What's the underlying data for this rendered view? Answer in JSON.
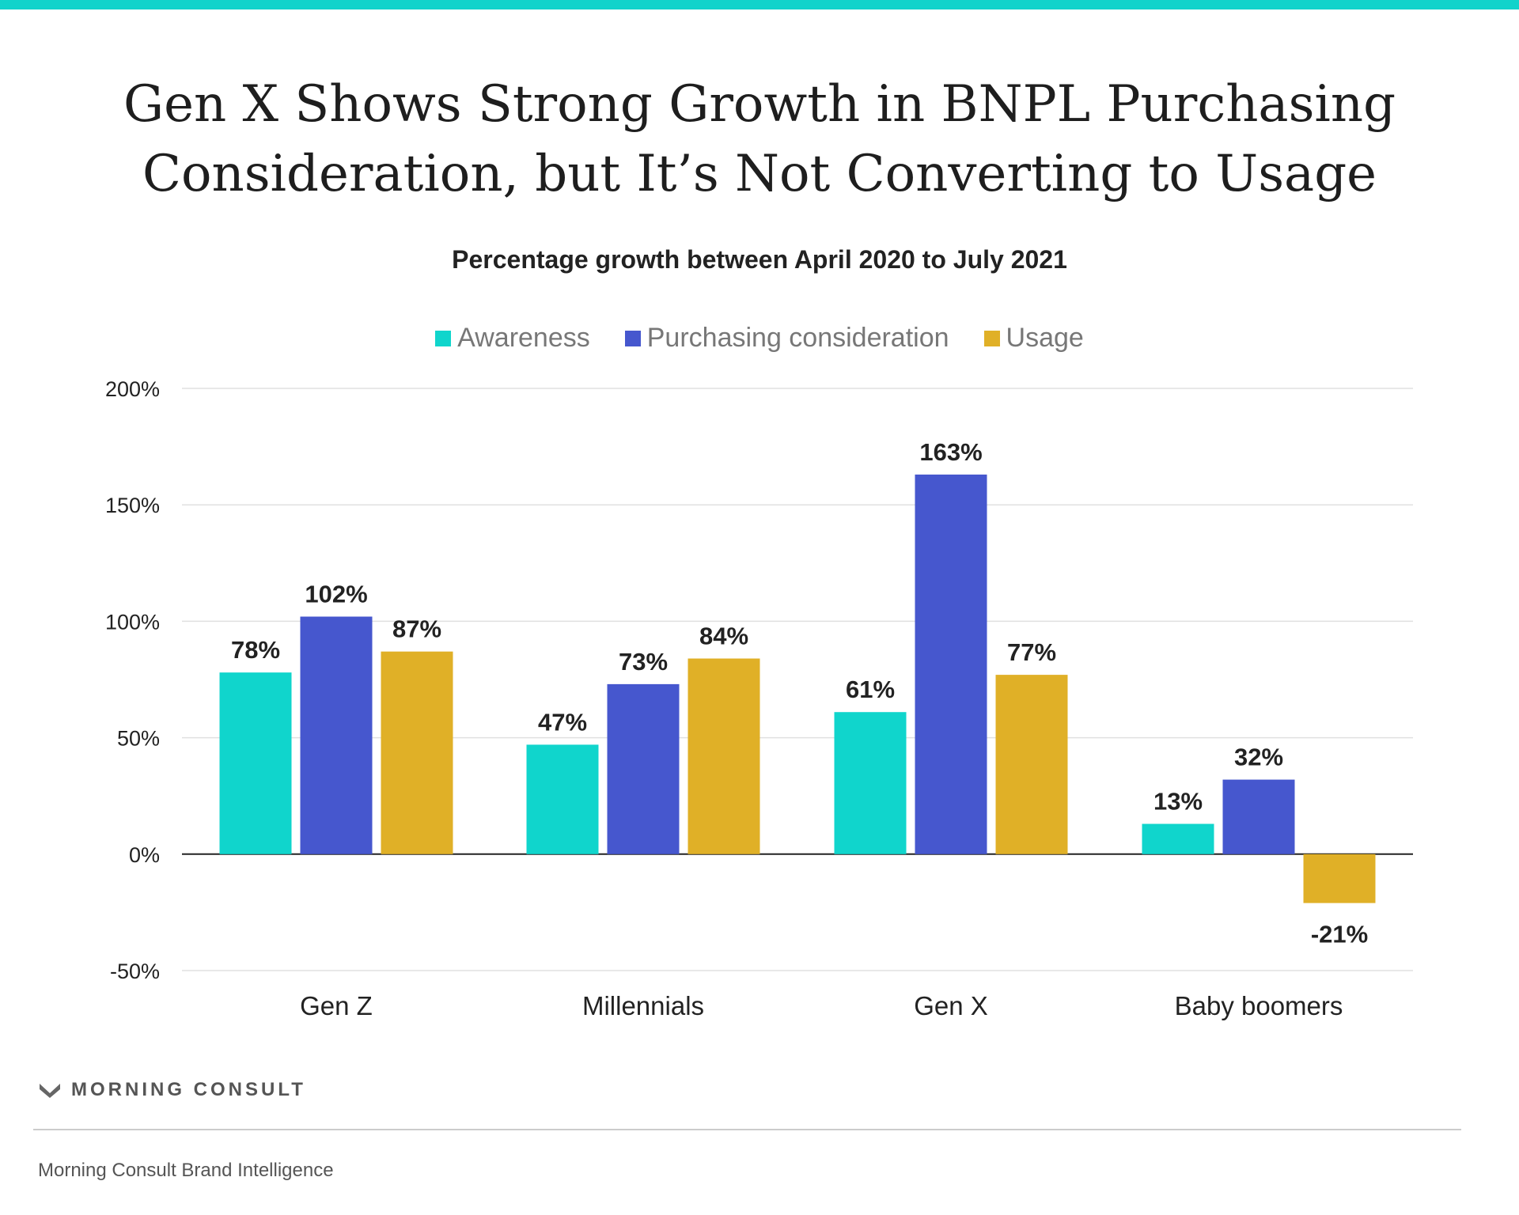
{
  "header": {
    "title_line1": "Gen X Shows Strong Growth in BNPL Purchasing",
    "title_line2": "Consideration, but It’s Not Converting to Usage",
    "subtitle": "Percentage growth between April 2020 to July 2021"
  },
  "colors": {
    "accent_bar": "#12d3cb",
    "gridline": "#e0e0e0",
    "zero_line": "#222222"
  },
  "chart_data": {
    "type": "bar",
    "categories": [
      "Gen Z",
      "Millennials",
      "Gen X",
      "Baby boomers"
    ],
    "series": [
      {
        "name": "Awareness",
        "color": "#10d5cc",
        "values": [
          78,
          47,
          61,
          13
        ],
        "labels": [
          "78%",
          "47%",
          "61%",
          "13%"
        ]
      },
      {
        "name": "Purchasing consideration",
        "color": "#4657ce",
        "values": [
          102,
          73,
          163,
          32
        ],
        "labels": [
          "102%",
          "73%",
          "163%",
          "32%"
        ]
      },
      {
        "name": "Usage",
        "color": "#e0b027",
        "values": [
          87,
          84,
          77,
          -21
        ],
        "labels": [
          "87%",
          "84%",
          "77%",
          "-21%"
        ]
      }
    ],
    "ylim": [
      -50,
      200
    ],
    "yticks": [
      200,
      150,
      100,
      50,
      0,
      -50
    ],
    "ytick_labels": [
      "200%",
      "150%",
      "100%",
      "50%",
      "0%",
      "-50%"
    ],
    "grid": true,
    "legend_position": "top-center",
    "xlabel": "",
    "ylabel": ""
  },
  "footer": {
    "brand": "MORNING CONSULT",
    "source": "Morning Consult Brand Intelligence"
  }
}
